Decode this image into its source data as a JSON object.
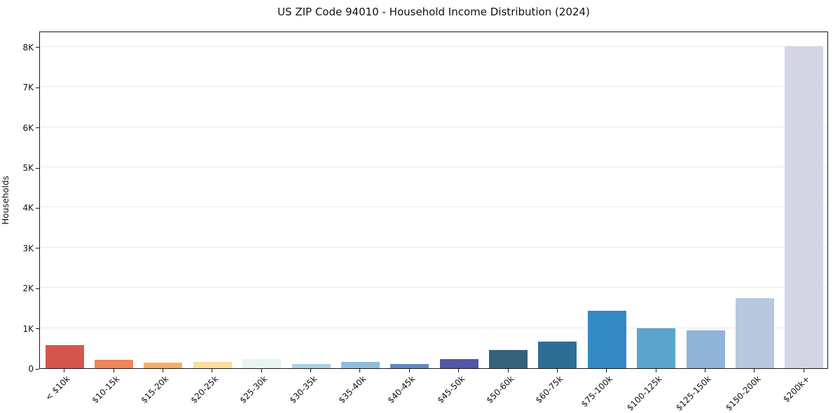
{
  "figure": {
    "background": "#ffffff",
    "spine_color": "#1a1a1a",
    "grid_color": "#e9e9e9",
    "text_color": "#111111"
  },
  "chart_data": {
    "type": "bar",
    "title": "US ZIP Code 94010 - Household Income Distribution (2024)",
    "xlabel": "",
    "ylabel": "Households",
    "categories": [
      "< $10k",
      "$10-15k",
      "$15-20k",
      "$20-25k",
      "$25-30k",
      "$30-35k",
      "$35-40k",
      "$40-45k",
      "$45-50k",
      "$50-60k",
      "$60-75k",
      "$75-100k",
      "$100-125k",
      "$125-150k",
      "$150-200k",
      "$200k+"
    ],
    "values": [
      580,
      215,
      140,
      155,
      225,
      105,
      160,
      110,
      230,
      450,
      665,
      1430,
      985,
      950,
      1745,
      8020
    ],
    "bar_colors": [
      "#d4574e",
      "#f0845c",
      "#f5ad6b",
      "#fade9c",
      "#e7f4f2",
      "#a9d2e3",
      "#92bddc",
      "#6289c2",
      "#5456a8",
      "#35617a",
      "#2d6e95",
      "#3389c4",
      "#5ba4cc",
      "#90b4d8",
      "#b9c8df",
      "#d4d5e4"
    ],
    "y_ticks": [
      {
        "label": "0",
        "value": 0
      },
      {
        "label": "1K",
        "value": 1000
      },
      {
        "label": "2K",
        "value": 2000
      },
      {
        "label": "3K",
        "value": 3000
      },
      {
        "label": "4K",
        "value": 4000
      },
      {
        "label": "5K",
        "value": 5000
      },
      {
        "label": "6K",
        "value": 6000
      },
      {
        "label": "7K",
        "value": 7000
      },
      {
        "label": "8K",
        "value": 8000
      }
    ],
    "ylim": [
      0,
      8400
    ],
    "grid": "horizontal-only",
    "legend": "none"
  }
}
